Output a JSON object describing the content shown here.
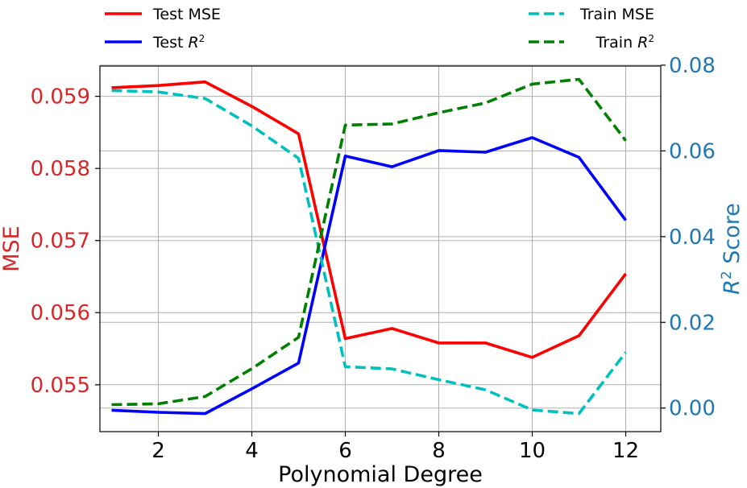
{
  "chart_data": {
    "type": "line",
    "xlabel": "Polynomial Degree",
    "ylabel_left": "MSE",
    "ylabel_right_prefix": "R",
    "ylabel_right_sup": "2",
    "ylabel_right_suffix": " Score",
    "x": [
      1,
      2,
      3,
      4,
      5,
      6,
      7,
      8,
      9,
      10,
      11,
      12
    ],
    "xlim": [
      0.75,
      12.75
    ],
    "xticks": [
      2,
      4,
      6,
      8,
      10,
      12
    ],
    "ylim_left": [
      0.05435,
      0.05942
    ],
    "yticks_left": [
      0.055,
      0.056,
      0.057,
      0.058,
      0.059
    ],
    "ylim_right": [
      -0.0055,
      0.0798
    ],
    "yticks_right": [
      0.0,
      0.02,
      0.04,
      0.06,
      0.08
    ],
    "grid": true,
    "left_axis_color": "#d62728",
    "right_axis_color": "#1f77b4",
    "series": [
      {
        "name": "Test MSE",
        "legend_main": "Test MSE",
        "legend_sup": "",
        "axis": "left",
        "color": "#ff0000",
        "dash": "solid",
        "values": [
          0.05912,
          0.05915,
          0.0592,
          0.05886,
          0.05848,
          0.05564,
          0.05578,
          0.05558,
          0.05558,
          0.05538,
          0.05568,
          0.05654
        ]
      },
      {
        "name": "Test R^2",
        "legend_main": "Test R",
        "legend_sup": "2",
        "axis": "right",
        "color": "#0000ff",
        "dash": "solid",
        "values": [
          -0.0005,
          -0.001,
          -0.0013,
          0.0045,
          0.0105,
          0.0588,
          0.0563,
          0.0601,
          0.0597,
          0.0631,
          0.0585,
          0.0438
        ]
      },
      {
        "name": "Train MSE",
        "legend_main": "Train MSE",
        "legend_sup": "",
        "axis": "left",
        "color": "#00bfbf",
        "dash": "dashed",
        "values": [
          0.05908,
          0.05906,
          0.05897,
          0.05859,
          0.05814,
          0.05525,
          0.05522,
          0.05507,
          0.05493,
          0.05465,
          0.0546,
          0.05545
        ]
      },
      {
        "name": "Train R^2",
        "legend_main": "Train R",
        "legend_sup": "2",
        "axis": "right",
        "color": "#008000",
        "dash": "dashed",
        "values": [
          0.0008,
          0.001,
          0.0027,
          0.0092,
          0.0165,
          0.066,
          0.0663,
          0.0689,
          0.0712,
          0.0756,
          0.0767,
          0.0624
        ]
      }
    ],
    "legend_placement": "above-plot, split left and right"
  }
}
